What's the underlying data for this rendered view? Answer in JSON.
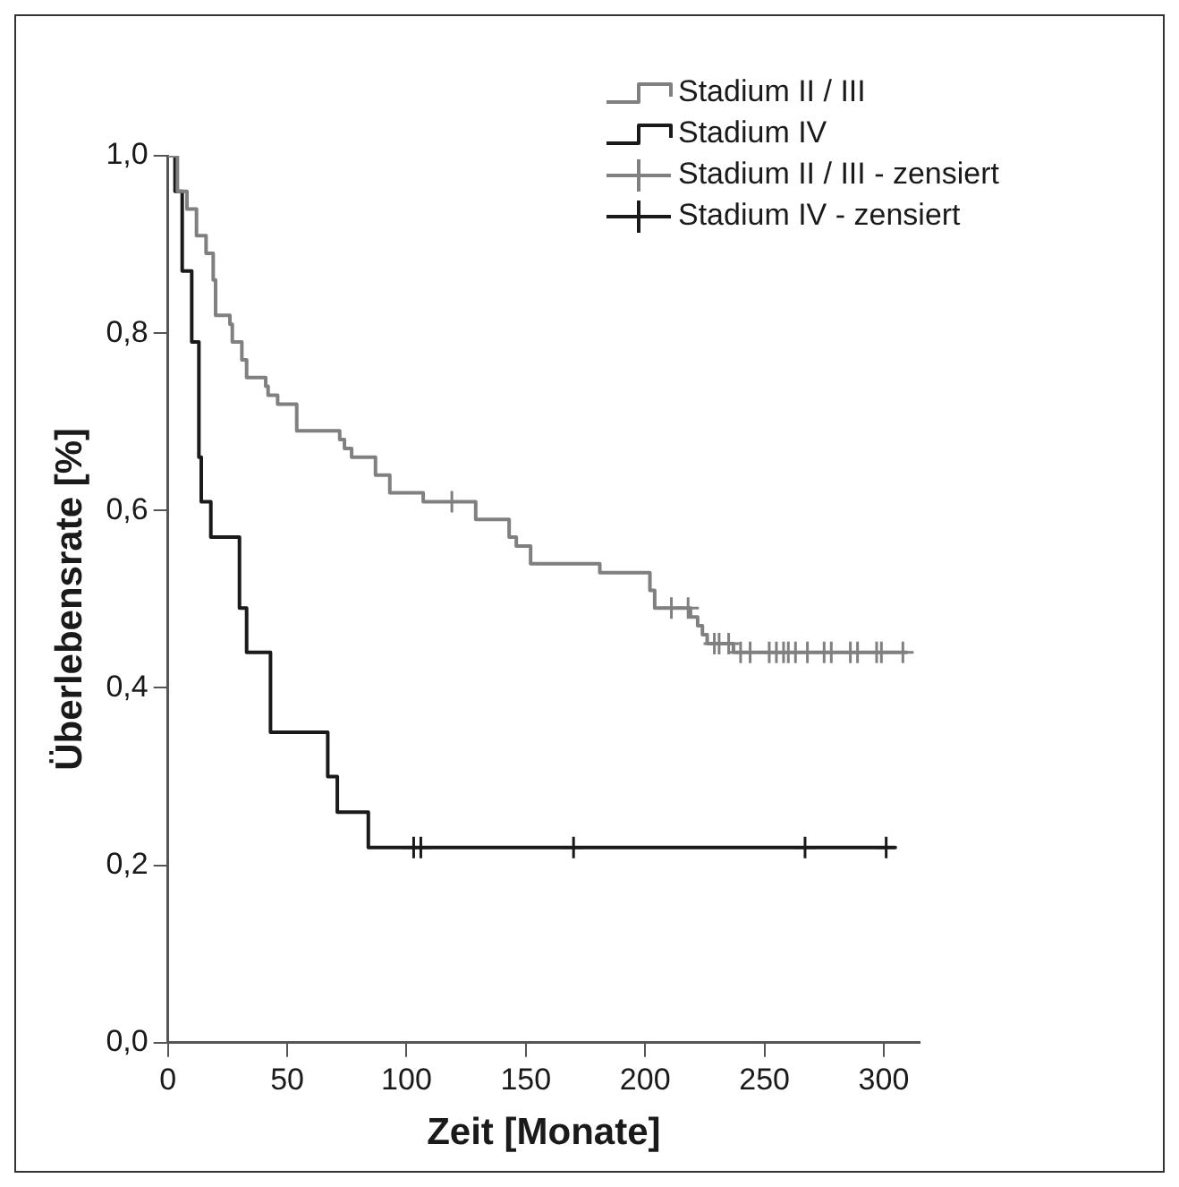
{
  "chart_data": {
    "type": "step",
    "xlabel": "Zeit [Monate]",
    "ylabel": "Überlebensrate [%]",
    "xlim": [
      0,
      315
    ],
    "xticks": [
      0,
      50,
      100,
      150,
      200,
      250,
      300
    ],
    "ylim": [
      0,
      1
    ],
    "yticks": [
      {
        "value": 0,
        "label": "0,0"
      },
      {
        "value": 0.2,
        "label": "0,2"
      },
      {
        "value": 0.4,
        "label": "0,4"
      },
      {
        "value": 0.6,
        "label": "0,6"
      },
      {
        "value": 0.8,
        "label": "0,8"
      },
      {
        "value": 1,
        "label": "1,0"
      }
    ],
    "grid": false,
    "legend": "top right",
    "series": [
      {
        "name": "Stadium II / III",
        "color": "#808080",
        "marker": "none",
        "x": [
          0,
          4,
          8,
          12,
          16,
          19,
          20,
          26,
          27,
          31,
          33,
          41,
          42,
          46,
          54,
          72,
          74,
          77,
          87,
          93,
          107,
          129,
          143,
          146,
          152,
          181,
          202,
          204,
          219,
          222,
          224,
          226,
          237,
          310
        ],
        "values": [
          1,
          0.96,
          0.94,
          0.91,
          0.89,
          0.86,
          0.82,
          0.81,
          0.79,
          0.77,
          0.75,
          0.74,
          0.73,
          0.72,
          0.69,
          0.68,
          0.67,
          0.66,
          0.64,
          0.62,
          0.61,
          0.59,
          0.57,
          0.56,
          0.54,
          0.53,
          0.51,
          0.49,
          0.48,
          0.47,
          0.46,
          0.45,
          0.44,
          0.44
        ]
      },
      {
        "name": "Stadium IV",
        "color": "#1a1a1a",
        "marker": "none",
        "x": [
          0,
          3,
          6,
          10,
          13,
          14,
          18,
          30,
          33,
          43,
          67,
          71,
          84,
          305
        ],
        "values": [
          1,
          0.96,
          0.87,
          0.79,
          0.66,
          0.61,
          0.57,
          0.49,
          0.44,
          0.35,
          0.3,
          0.26,
          0.22,
          0.22
        ]
      },
      {
        "name": "Stadium II / III - zensiert",
        "color": "#808080",
        "type": "scatter",
        "marker": "cross",
        "x": [
          119,
          211,
          218,
          229,
          231,
          235,
          240,
          244,
          252,
          255,
          258,
          260,
          263,
          268,
          275,
          278,
          286,
          289,
          297,
          299,
          308
        ],
        "values": [
          0.61,
          0.49,
          0.49,
          0.45,
          0.45,
          0.45,
          0.44,
          0.44,
          0.44,
          0.44,
          0.44,
          0.44,
          0.44,
          0.44,
          0.44,
          0.44,
          0.44,
          0.44,
          0.44,
          0.44,
          0.44
        ]
      },
      {
        "name": "Stadium IV - zensiert",
        "color": "#1a1a1a",
        "type": "scatter",
        "marker": "cross",
        "x": [
          103,
          106,
          170,
          267,
          301
        ],
        "values": [
          0.22,
          0.22,
          0.22,
          0.22,
          0.22
        ]
      }
    ]
  }
}
